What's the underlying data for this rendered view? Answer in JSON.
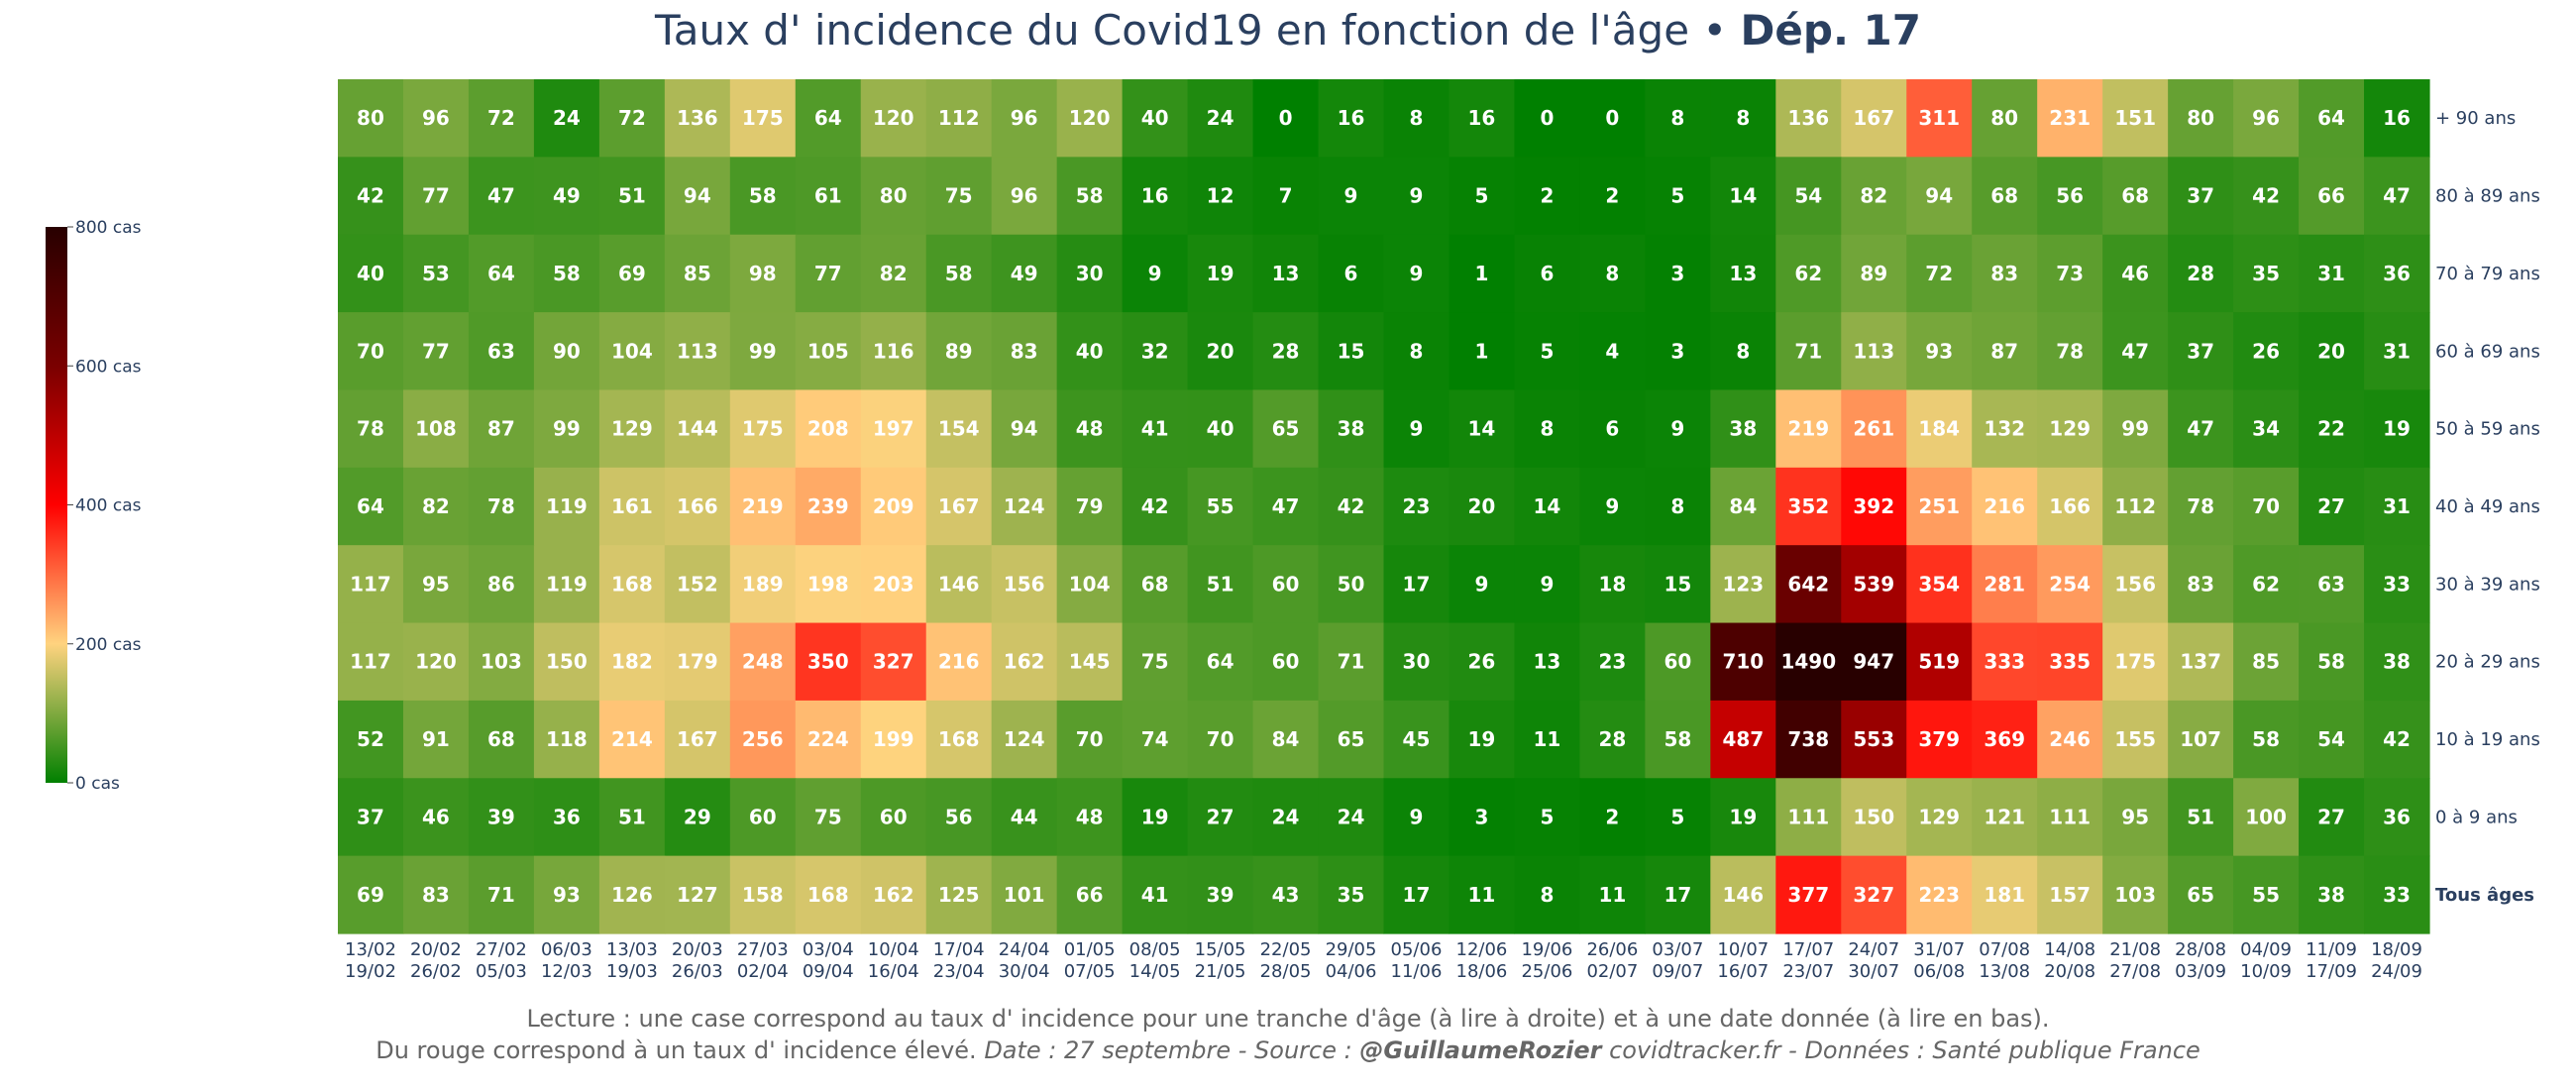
{
  "title": {
    "main": "Taux d' incidence du Covid19 en fonction de l'âge • ",
    "dep": "Dép. 17"
  },
  "caption": {
    "line1": "Lecture : une case correspond au taux d' incidence pour une tranche d'âge (à lire à droite) et à une date donnée (à lire en bas).",
    "line2_plain": "Du rouge correspond à un taux d' incidence élevé.  ",
    "line2_date_source": "Date : 27 septembre - Source : ",
    "line2_author": "@GuillaumeRozier",
    "line2_rest": " covidtracker.fr - Données : Santé publique France"
  },
  "colors": {
    "scale": [
      "#008000",
      "#ffd37f",
      "#ff0000",
      "#7a0000",
      "#280000"
    ],
    "text": "#2a3f5f"
  },
  "chart_data": {
    "type": "heatmap",
    "title": "Taux d' incidence du Covid19 en fonction de l'âge • Dép. 17",
    "x_labels": [
      [
        "13/02",
        "19/02"
      ],
      [
        "20/02",
        "26/02"
      ],
      [
        "27/02",
        "05/03"
      ],
      [
        "06/03",
        "12/03"
      ],
      [
        "13/03",
        "19/03"
      ],
      [
        "20/03",
        "26/03"
      ],
      [
        "27/03",
        "02/04"
      ],
      [
        "03/04",
        "09/04"
      ],
      [
        "10/04",
        "16/04"
      ],
      [
        "17/04",
        "23/04"
      ],
      [
        "24/04",
        "30/04"
      ],
      [
        "01/05",
        "07/05"
      ],
      [
        "08/05",
        "14/05"
      ],
      [
        "15/05",
        "21/05"
      ],
      [
        "22/05",
        "28/05"
      ],
      [
        "29/05",
        "04/06"
      ],
      [
        "05/06",
        "11/06"
      ],
      [
        "12/06",
        "18/06"
      ],
      [
        "19/06",
        "25/06"
      ],
      [
        "26/06",
        "02/07"
      ],
      [
        "03/07",
        "09/07"
      ],
      [
        "10/07",
        "16/07"
      ],
      [
        "17/07",
        "23/07"
      ],
      [
        "24/07",
        "30/07"
      ],
      [
        "31/07",
        "06/08"
      ],
      [
        "07/08",
        "13/08"
      ],
      [
        "14/08",
        "20/08"
      ],
      [
        "21/08",
        "27/08"
      ],
      [
        "28/08",
        "03/09"
      ],
      [
        "04/09",
        "10/09"
      ],
      [
        "11/09",
        "17/09"
      ],
      [
        "18/09",
        "24/09"
      ]
    ],
    "y_labels": [
      "+ 90 ans",
      "80 à 89 ans",
      "70 à 79 ans",
      "60 à 69 ans",
      "50 à 59 ans",
      "40 à 49 ans",
      "30 à 39 ans",
      "20 à 29 ans",
      "10 à 19 ans",
      "0 à 9 ans",
      "Tous âges"
    ],
    "bold_row": "Tous âges",
    "zmin": 0,
    "zmax": 800,
    "colorbar_ticks": [
      "0 cas",
      "200 cas",
      "400 cas",
      "600 cas",
      "800 cas"
    ],
    "colorbar_tick_values": [
      0,
      200,
      400,
      600,
      800
    ],
    "values": [
      [
        80,
        96,
        72,
        24,
        72,
        136,
        175,
        64,
        120,
        112,
        96,
        120,
        40,
        24,
        0,
        16,
        8,
        16,
        0,
        0,
        8,
        8,
        136,
        167,
        311,
        80,
        231,
        151,
        80,
        96,
        64,
        16
      ],
      [
        42,
        77,
        47,
        49,
        51,
        94,
        58,
        61,
        80,
        75,
        96,
        58,
        16,
        12,
        7,
        9,
        9,
        5,
        2,
        2,
        5,
        14,
        54,
        82,
        94,
        68,
        56,
        68,
        37,
        42,
        66,
        47
      ],
      [
        40,
        53,
        64,
        58,
        69,
        85,
        98,
        77,
        82,
        58,
        49,
        30,
        9,
        19,
        13,
        6,
        9,
        1,
        6,
        8,
        3,
        13,
        62,
        89,
        72,
        83,
        73,
        46,
        28,
        35,
        31,
        36
      ],
      [
        70,
        77,
        63,
        90,
        104,
        113,
        99,
        105,
        116,
        89,
        83,
        40,
        32,
        20,
        28,
        15,
        8,
        1,
        5,
        4,
        3,
        8,
        71,
        113,
        93,
        87,
        78,
        47,
        37,
        26,
        20,
        31
      ],
      [
        78,
        108,
        87,
        99,
        129,
        144,
        175,
        208,
        197,
        154,
        94,
        48,
        41,
        40,
        65,
        38,
        9,
        14,
        8,
        6,
        9,
        38,
        219,
        261,
        184,
        132,
        129,
        99,
        47,
        34,
        22,
        19
      ],
      [
        64,
        82,
        78,
        119,
        161,
        166,
        219,
        239,
        209,
        167,
        124,
        79,
        42,
        55,
        47,
        42,
        23,
        20,
        14,
        9,
        8,
        84,
        352,
        392,
        251,
        216,
        166,
        112,
        78,
        70,
        27,
        31
      ],
      [
        117,
        95,
        86,
        119,
        168,
        152,
        189,
        198,
        203,
        146,
        156,
        104,
        68,
        51,
        60,
        50,
        17,
        9,
        9,
        18,
        15,
        123,
        642,
        539,
        354,
        281,
        254,
        156,
        83,
        62,
        63,
        33
      ],
      [
        117,
        120,
        103,
        150,
        182,
        179,
        248,
        350,
        327,
        216,
        162,
        145,
        75,
        64,
        60,
        71,
        30,
        26,
        13,
        23,
        60,
        710,
        1490,
        947,
        519,
        333,
        335,
        175,
        137,
        85,
        58,
        38
      ],
      [
        52,
        91,
        68,
        118,
        214,
        167,
        256,
        224,
        199,
        168,
        124,
        70,
        74,
        70,
        84,
        65,
        45,
        19,
        11,
        28,
        58,
        487,
        738,
        553,
        379,
        369,
        246,
        155,
        107,
        58,
        54,
        42
      ],
      [
        37,
        46,
        39,
        36,
        51,
        29,
        60,
        75,
        60,
        56,
        44,
        48,
        19,
        27,
        24,
        24,
        9,
        3,
        5,
        2,
        5,
        19,
        111,
        150,
        129,
        121,
        111,
        95,
        51,
        100,
        27,
        36
      ],
      [
        69,
        83,
        71,
        93,
        126,
        127,
        158,
        168,
        162,
        125,
        101,
        66,
        41,
        39,
        43,
        35,
        17,
        11,
        8,
        11,
        17,
        146,
        377,
        327,
        223,
        181,
        157,
        103,
        65,
        55,
        38,
        33
      ]
    ]
  }
}
